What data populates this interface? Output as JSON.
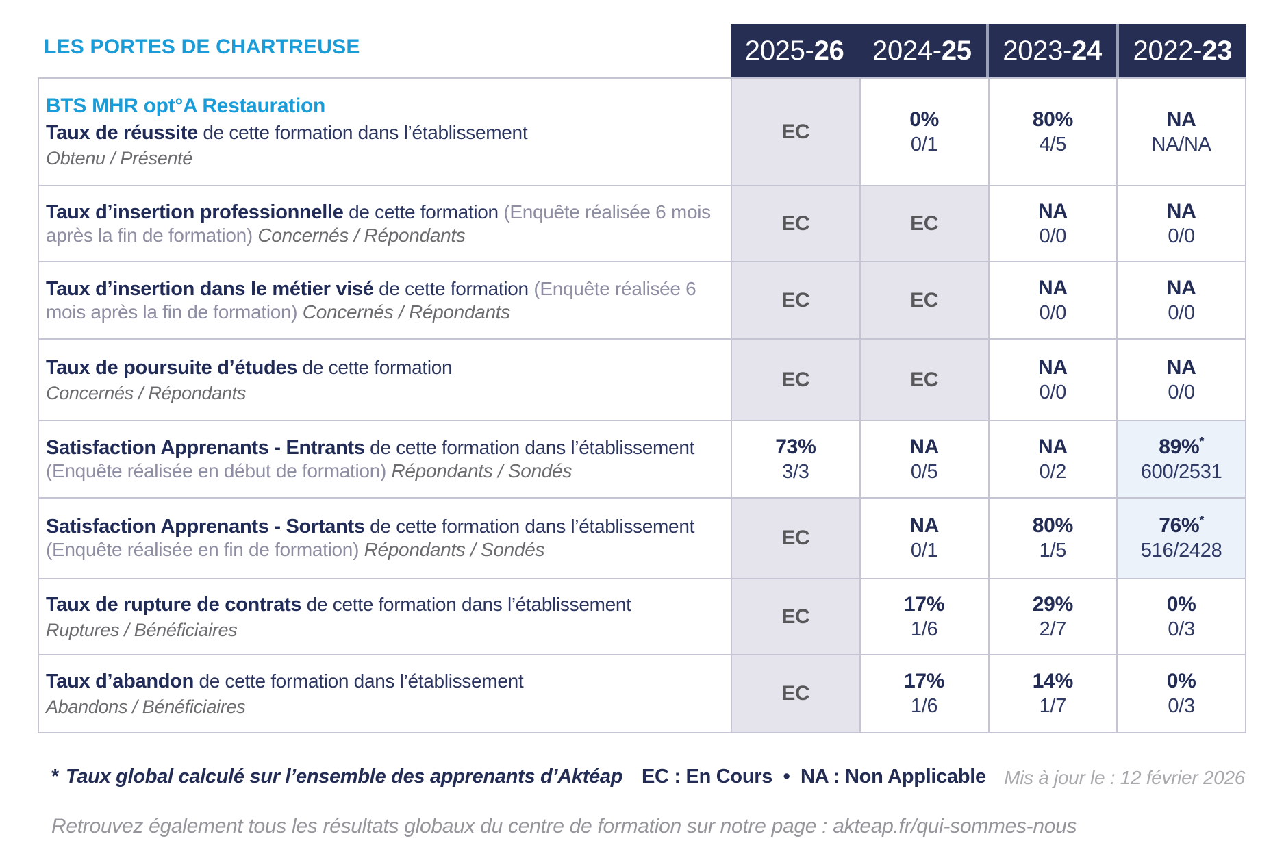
{
  "header": {
    "org_title": "LES PORTES DE CHARTREUSE",
    "course_title": "BTS MHR opt°A Restauration"
  },
  "columns": [
    {
      "start": "2025-",
      "end": "26"
    },
    {
      "start": "2024-",
      "end": "25"
    },
    {
      "start": "2023-",
      "end": "24"
    },
    {
      "start": "2022-",
      "end": "23"
    }
  ],
  "rows": [
    {
      "title": "Taux de réussite",
      "desc": "de cette formation dans l’établissement",
      "note": "",
      "inline_sub": "",
      "block_sub": "Obtenu / Présenté",
      "cells": [
        {
          "type": "ec",
          "main": "EC"
        },
        {
          "type": "value",
          "main": "0%",
          "sub": "0/1"
        },
        {
          "type": "value",
          "main": "80%",
          "sub": "4/5"
        },
        {
          "type": "value",
          "main": "NA",
          "sub": "NA/NA"
        }
      ]
    },
    {
      "title": "Taux d’insertion professionnelle",
      "desc": "de cette formation",
      "note": "(Enquête réalisée 6 mois après la fin de formation)",
      "inline_sub": "Concernés / Répondants",
      "block_sub": "",
      "cells": [
        {
          "type": "ec",
          "main": "EC"
        },
        {
          "type": "ec",
          "main": "EC"
        },
        {
          "type": "value",
          "main": "NA",
          "sub": "0/0"
        },
        {
          "type": "value",
          "main": "NA",
          "sub": "0/0"
        }
      ]
    },
    {
      "title": "Taux d’insertion dans le métier visé",
      "desc": "de cette formation",
      "note": "(Enquête réalisée 6 mois après la fin de formation)",
      "inline_sub": "Concernés / Répondants",
      "block_sub": "",
      "cells": [
        {
          "type": "ec",
          "main": "EC"
        },
        {
          "type": "ec",
          "main": "EC"
        },
        {
          "type": "value",
          "main": "NA",
          "sub": "0/0"
        },
        {
          "type": "value",
          "main": "NA",
          "sub": "0/0"
        }
      ]
    },
    {
      "title": "Taux de poursuite d’études",
      "desc": "de cette formation",
      "note": "",
      "inline_sub": "",
      "block_sub": "Concernés / Répondants",
      "cells": [
        {
          "type": "ec",
          "main": "EC"
        },
        {
          "type": "ec",
          "main": "EC"
        },
        {
          "type": "value",
          "main": "NA",
          "sub": "0/0"
        },
        {
          "type": "value",
          "main": "NA",
          "sub": "0/0"
        }
      ]
    },
    {
      "title": "Satisfaction Apprenants - Entrants",
      "desc": "de cette formation dans l’établissement",
      "note": "(Enquête réalisée en début de formation)",
      "inline_sub": "Répondants / Sondés",
      "block_sub": "",
      "cells": [
        {
          "type": "value",
          "main": "73%",
          "sub": "3/3"
        },
        {
          "type": "value",
          "main": "NA",
          "sub": "0/5"
        },
        {
          "type": "value",
          "main": "NA",
          "sub": "0/2"
        },
        {
          "type": "value-star",
          "main": "89%",
          "star": "*",
          "sub": "600/2531"
        }
      ]
    },
    {
      "title": "Satisfaction Apprenants - Sortants",
      "desc": "de cette formation dans l’établissement",
      "note": "(Enquête réalisée en fin de formation)",
      "inline_sub": "Répondants / Sondés",
      "block_sub": "",
      "cells": [
        {
          "type": "ec",
          "main": "EC"
        },
        {
          "type": "value",
          "main": "NA",
          "sub": "0/1"
        },
        {
          "type": "value",
          "main": "80%",
          "sub": "1/5"
        },
        {
          "type": "value-star",
          "main": "76%",
          "star": "*",
          "sub": "516/2428"
        }
      ]
    },
    {
      "title": "Taux de rupture de contrats",
      "desc": "de cette formation dans l’établissement",
      "note": "",
      "inline_sub": "",
      "block_sub": "Ruptures / Bénéficiaires",
      "cells": [
        {
          "type": "ec",
          "main": "EC"
        },
        {
          "type": "value",
          "main": "17%",
          "sub": "1/6"
        },
        {
          "type": "value",
          "main": "29%",
          "sub": "2/7"
        },
        {
          "type": "value",
          "main": "0%",
          "sub": "0/3"
        }
      ]
    },
    {
      "title": "Taux d’abandon",
      "desc": "de cette formation dans l’établissement",
      "note": "",
      "inline_sub": "",
      "block_sub": "Abandons / Bénéficiaires",
      "cells": [
        {
          "type": "ec",
          "main": "EC"
        },
        {
          "type": "value",
          "main": "17%",
          "sub": "1/6"
        },
        {
          "type": "value",
          "main": "14%",
          "sub": "1/7"
        },
        {
          "type": "value",
          "main": "0%",
          "sub": "0/3"
        }
      ]
    }
  ],
  "footer": {
    "footnote_star": "*",
    "footnote_text": "Taux global calculé sur l’ensemble des apprenants d’Aktéap",
    "legend": "EC : En Cours  •  NA : Non Applicable",
    "updated": "Mis à jour le : 12 février 2026",
    "bottom_line": "Retrouvez également tous les résultats globaux du centre de formation sur notre page : akteap.fr/qui-sommes-nous"
  },
  "colors": {
    "accent_blue": "#1a9cd8",
    "navy": "#272e54",
    "ec_cell_bg": "#e5e4ed",
    "star_cell_bg": "#ebf2f9",
    "grid": "#c5c4d2"
  }
}
